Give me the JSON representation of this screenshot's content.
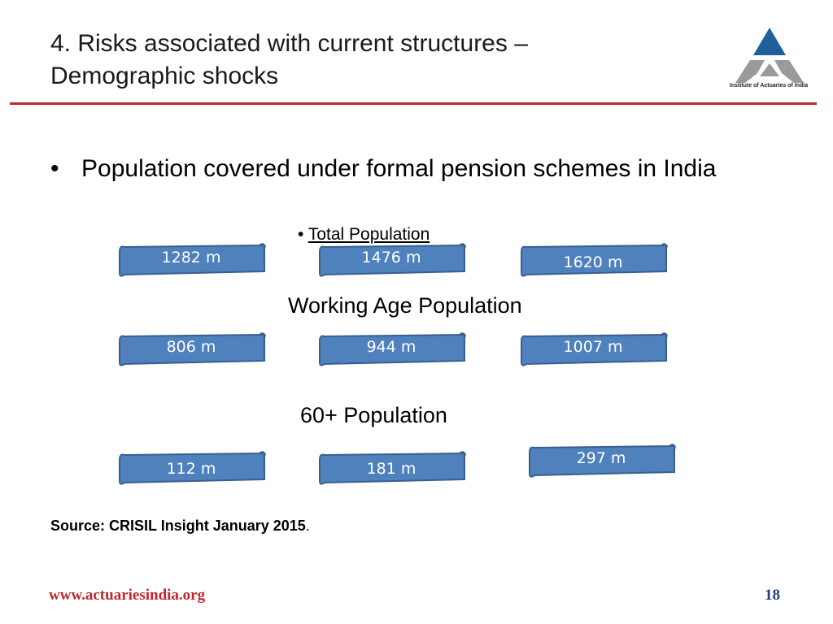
{
  "header": {
    "title_line1": "4. Risks associated with current structures –",
    "title_line2": "Demographic shocks",
    "logo_caption": "Institute of Actuaries of India"
  },
  "main": {
    "bullet": "Population covered under formal pension schemes in India",
    "bullet_marker": "•",
    "sub_bullet_marker": "•",
    "sub_bullet": "Total Population",
    "groups": [
      {
        "label": "",
        "values": [
          "1282 m",
          "1476 m",
          "1620 m"
        ]
      },
      {
        "label": "Working Age Population",
        "values": [
          "806 m",
          "944 m",
          "1007 m"
        ]
      },
      {
        "label": "60+ Population",
        "values": [
          "112 m",
          "181 m",
          "297 m"
        ]
      }
    ],
    "source_bold": "Source: CRISIL Insight January 2015",
    "source_tail": "."
  },
  "footer": {
    "url": "www.actuariesindia.org",
    "page_number": "18"
  },
  "colors": {
    "accent_rule": "#c0272d",
    "scroll_fill": "#4f81bd",
    "scroll_border": "#3a5f8f",
    "logo_blue": "#1f5f9a",
    "logo_gray": "#9a9a9a"
  }
}
